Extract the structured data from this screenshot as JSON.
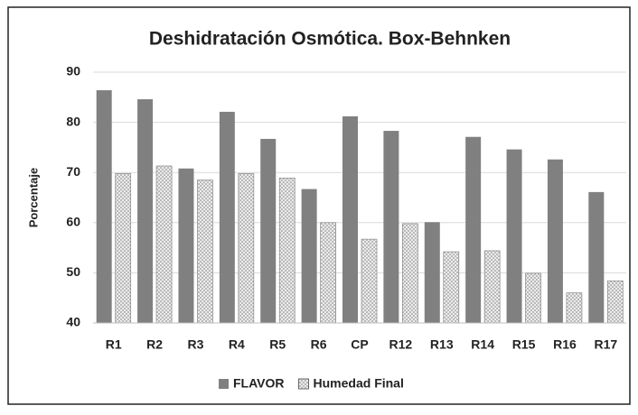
{
  "chart_data": {
    "type": "bar",
    "title": "Deshidratación Osmótica. Box-Behnken",
    "y_label": "Porcentaje",
    "categories": [
      "R1",
      "R2",
      "R3",
      "R4",
      "R5",
      "R6",
      "CP",
      "R12",
      "R13",
      "R14",
      "R15",
      "R16",
      "R17"
    ],
    "series": [
      {
        "name": "FLAVOR",
        "color": "#808080",
        "values": [
          86.4,
          84.6,
          70.8,
          82.1,
          76.7,
          66.7,
          81.2,
          78.3,
          60.1,
          77.1,
          74.6,
          72.6,
          66.1
        ]
      },
      {
        "name": "Humedad Final",
        "color": "#e6e6e6",
        "values": [
          69.8,
          71.3,
          68.5,
          69.8,
          68.9,
          60.0,
          56.7,
          59.8,
          54.2,
          54.4,
          49.9,
          46.0,
          48.4
        ]
      }
    ],
    "ylim": [
      40,
      90
    ],
    "yticks": [
      40,
      50,
      60,
      70,
      80,
      90
    ],
    "grid": true,
    "legend": "bottom"
  }
}
